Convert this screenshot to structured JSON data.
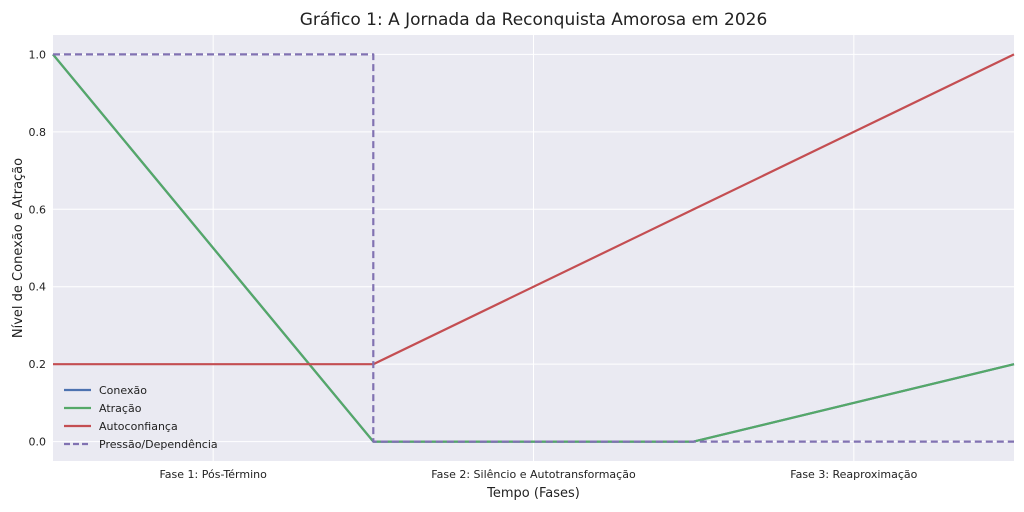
{
  "chart_data": {
    "type": "line",
    "title": "Gráfico 1: A Jornada da Reconquista Amorosa em 2026",
    "xlabel": "Tempo (Fases)",
    "ylabel": "Nível de Conexão e Atração",
    "x_ticks": [
      "Fase 1: Pós-Término",
      "Fase 2: Silêncio e Autotransformação",
      "Fase 3: Reaproximação"
    ],
    "x_tick_positions": [
      0.5,
      1.5,
      2.5
    ],
    "xlim": [
      0,
      3
    ],
    "ylim": [
      -0.05,
      1.05
    ],
    "y_ticks": [
      0.0,
      0.2,
      0.4,
      0.6,
      0.8,
      1.0
    ],
    "y_tick_labels": [
      "0.0",
      "0.2",
      "0.4",
      "0.6",
      "0.8",
      "1.0"
    ],
    "grid": true,
    "legend_position": "lower-left",
    "series": [
      {
        "name": "Conexão",
        "color": "#4c72b0",
        "dash": "solid",
        "points": [
          [
            0.0,
            1.0
          ],
          [
            1.0,
            0.0
          ],
          [
            2.0,
            0.0
          ],
          [
            3.0,
            0.2
          ]
        ]
      },
      {
        "name": "Atração",
        "color": "#55a868",
        "dash": "solid",
        "points": [
          [
            0.0,
            1.0
          ],
          [
            1.0,
            0.0
          ],
          [
            2.0,
            0.0
          ],
          [
            3.0,
            0.2
          ]
        ]
      },
      {
        "name": "Autoconfiança",
        "color": "#c44e52",
        "dash": "solid",
        "points": [
          [
            0.0,
            0.2
          ],
          [
            1.0,
            0.2
          ],
          [
            2.0,
            0.6
          ],
          [
            3.0,
            1.0
          ]
        ]
      },
      {
        "name": "Pressão/Dependência",
        "color": "#8172b2",
        "dash": "dashed",
        "points": [
          [
            0.0,
            1.0
          ],
          [
            1.0,
            1.0
          ],
          [
            1.0,
            0.0
          ],
          [
            2.0,
            0.0
          ],
          [
            3.0,
            0.0
          ]
        ]
      }
    ]
  }
}
